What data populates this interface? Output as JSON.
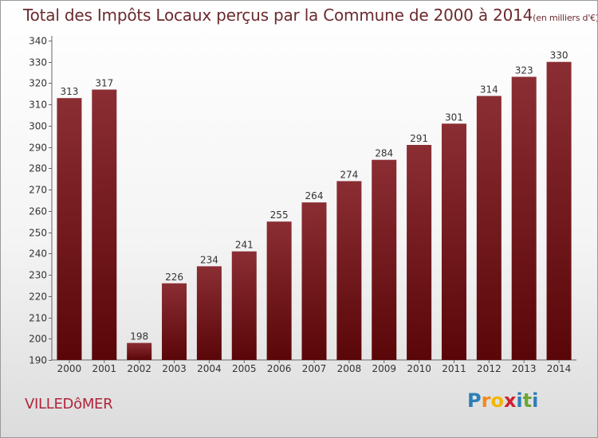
{
  "title": "Total des Impôts Locaux perçus par la Commune de 2000 à 2014",
  "title_unit": "(en milliers d'€)",
  "commune": "VILLEDôMER",
  "brand": {
    "letters": [
      {
        "ch": "P",
        "color": "#2c7fb8"
      },
      {
        "ch": "r",
        "color": "#f08a1d"
      },
      {
        "ch": "o",
        "color": "#f2b705"
      },
      {
        "ch": "x",
        "color": "#d0202e"
      },
      {
        "ch": "i",
        "color": "#2c7fb8"
      },
      {
        "ch": "t",
        "color": "#6aa832"
      },
      {
        "ch": "i",
        "color": "#2c7fb8"
      }
    ]
  },
  "chart_data": {
    "type": "bar",
    "categories": [
      "2000",
      "2001",
      "2002",
      "2003",
      "2004",
      "2005",
      "2006",
      "2007",
      "2008",
      "2009",
      "2010",
      "2011",
      "2012",
      "2013",
      "2014"
    ],
    "values": [
      313,
      317,
      198,
      226,
      234,
      241,
      255,
      264,
      274,
      284,
      291,
      301,
      314,
      323,
      330
    ],
    "ylim": [
      190,
      340
    ],
    "yticks": [
      190,
      200,
      210,
      220,
      230,
      240,
      250,
      260,
      270,
      280,
      290,
      300,
      310,
      320,
      330,
      340
    ],
    "bar_color_top": "#8b2e34",
    "bar_color_bottom": "#5a0608",
    "data_labels": true,
    "grid": false
  }
}
